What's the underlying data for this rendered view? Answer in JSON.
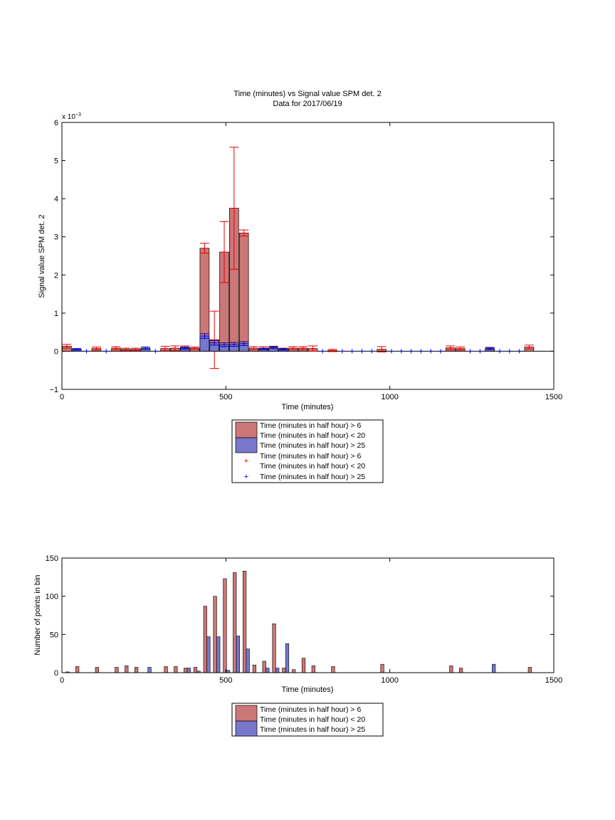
{
  "chart_data": [
    {
      "type": "bar",
      "title": "Time (minutes) vs Signal value SPM det. 2",
      "subtitle": "Data for 2017/06/19",
      "xlabel": "Time (minutes)",
      "ylabel": "Signal value SPM det. 2",
      "y_exponent_label": "x 10",
      "y_exponent_power": "−3",
      "xlim": [
        0,
        1500
      ],
      "ylim": [
        -1,
        6
      ],
      "xticks": [
        "0",
        "500",
        "1000",
        "1500"
      ],
      "yticks": [
        "−1",
        "0",
        "1",
        "2",
        "3",
        "4",
        "5",
        "6"
      ],
      "grid": false,
      "legend": {
        "placement": "below",
        "entries": [
          "Time (minutes in half hour) > 6",
          "Time (minutes in half hour) < 20",
          "Time (minutes in half hour) > 25",
          "Time (minutes in half hour) > 6",
          "Time (minutes in half hour) < 20",
          "Time (minutes in half hour) > 25"
        ]
      },
      "colors": {
        "red_fill": "#cc7777",
        "blue_fill": "#7777cc",
        "red_err": "#e00000",
        "blue_err": "#0000cc"
      },
      "series": [
        {
          "name": "Time (minutes in half hour) > 6 / < 20",
          "x": [
            15,
            105,
            165,
            195,
            225,
            315,
            345,
            375,
            405,
            435,
            465,
            495,
            525,
            555,
            585,
            615,
            645,
            675,
            705,
            735,
            765,
            825,
            975,
            1185,
            1215,
            1305,
            1425
          ],
          "values": [
            0.00013,
            7e-05,
            8e-05,
            5e-05,
            5e-05,
            7e-05,
            8e-05,
            0.0001,
            8e-05,
            0.0027,
            0.0003,
            0.0026,
            0.00375,
            0.0031,
            8e-05,
            8e-05,
            8e-05,
            5e-05,
            8e-05,
            8e-05,
            7e-05,
            2e-05,
            5e-05,
            9e-05,
            7e-05,
            6e-05,
            0.00011
          ],
          "err": [
            5e-05,
            4e-05,
            4e-05,
            3e-05,
            3e-05,
            6e-05,
            6e-05,
            4e-05,
            3e-05,
            0.00013,
            0.00075,
            0.0008,
            0.0016,
            8e-05,
            4e-05,
            4e-05,
            4e-05,
            3e-05,
            4e-05,
            4e-05,
            7e-05,
            3e-05,
            7e-05,
            5e-05,
            4e-05,
            3e-05,
            5e-05
          ]
        },
        {
          "name": "Time (minutes in half hour) > 25",
          "x": [
            45,
            255,
            375,
            435,
            465,
            495,
            525,
            555,
            615,
            645,
            675,
            1305
          ],
          "values": [
            5e-05,
            8e-05,
            8e-05,
            0.0004,
            0.00022,
            0.00017,
            0.00018,
            0.0002,
            6e-05,
            0.0001,
            5e-05,
            7e-05
          ],
          "err": [
            2e-05,
            3e-05,
            3e-05,
            6e-05,
            6e-05,
            5e-05,
            5e-05,
            5e-05,
            2e-05,
            3e-05,
            2e-05,
            3e-05
          ]
        }
      ],
      "zero_markers_x": [
        75,
        135,
        285,
        795,
        855,
        885,
        915,
        945,
        1005,
        1035,
        1065,
        1095,
        1125,
        1155,
        1245,
        1275,
        1335,
        1365,
        1395
      ]
    },
    {
      "type": "bar",
      "title": "",
      "xlabel": "Time (minutes)",
      "ylabel": "Number of points in bin",
      "xlim": [
        0,
        1500
      ],
      "ylim": [
        0,
        150
      ],
      "xticks": [
        "0",
        "500",
        "1000",
        "1500"
      ],
      "yticks": [
        "0",
        "50",
        "100",
        "150"
      ],
      "grid": false,
      "legend": {
        "placement": "below",
        "entries": [
          "Time (minutes in half hour) > 6",
          "Time (minutes in half hour) < 20",
          "Time (minutes in half hour) > 25"
        ]
      },
      "colors": {
        "red_fill": "#cc7777",
        "blue_fill": "#7777cc"
      },
      "series": [
        {
          "name": "Time (minutes in half hour) > 6 / < 20",
          "x": [
            0,
            30,
            90,
            150,
            180,
            210,
            240,
            300,
            330,
            360,
            390,
            420,
            450,
            480,
            510,
            540,
            570,
            600,
            630,
            660,
            690,
            720,
            750,
            810,
            960,
            1170,
            1200,
            1410
          ],
          "values": [
            1,
            8,
            7,
            7,
            9,
            7,
            0,
            8,
            8,
            6,
            7,
            87,
            100,
            123,
            131,
            133,
            10,
            15,
            64,
            6,
            4,
            19,
            9,
            8,
            11,
            9,
            6,
            7
          ]
        },
        {
          "name": "Time (minutes in half hour) > 25",
          "x": [
            240,
            360,
            390,
            420,
            450,
            480,
            510,
            540,
            600,
            630,
            660,
            1290
          ],
          "values": [
            7,
            6,
            2,
            47,
            47,
            3,
            48,
            31,
            6,
            6,
            38,
            11
          ]
        }
      ]
    }
  ]
}
